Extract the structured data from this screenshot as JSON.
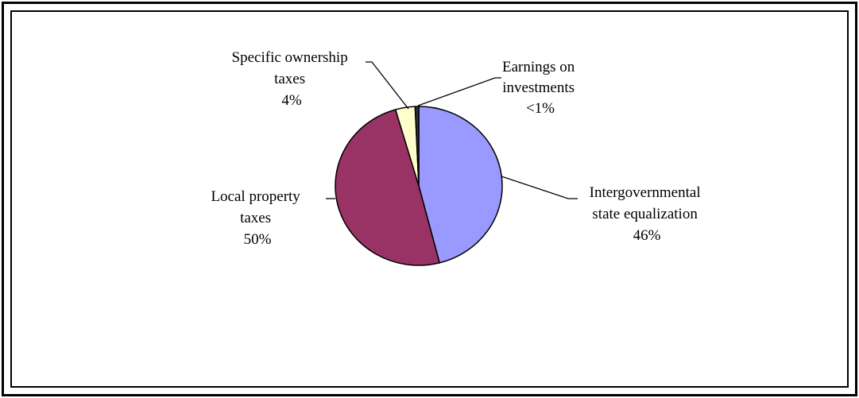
{
  "chart_data": {
    "type": "pie",
    "slices": [
      {
        "label_lines": [
          "Intergovernmental",
          "state equalization",
          "46%"
        ],
        "value": 46,
        "color": "#9999ff"
      },
      {
        "label_lines": [
          "Local property",
          "taxes",
          "50%"
        ],
        "value": 49.5,
        "color": "#993366"
      },
      {
        "label_lines": [
          "Specific ownership",
          "taxes",
          "4%"
        ],
        "value": 3.8,
        "color": "#ffffcc"
      },
      {
        "label_lines": [
          "Earnings on",
          "investments",
          "<1%"
        ],
        "value": 0.7,
        "color": "#333333"
      }
    ],
    "start_angle_deg": 0,
    "direction": "clockwise"
  }
}
